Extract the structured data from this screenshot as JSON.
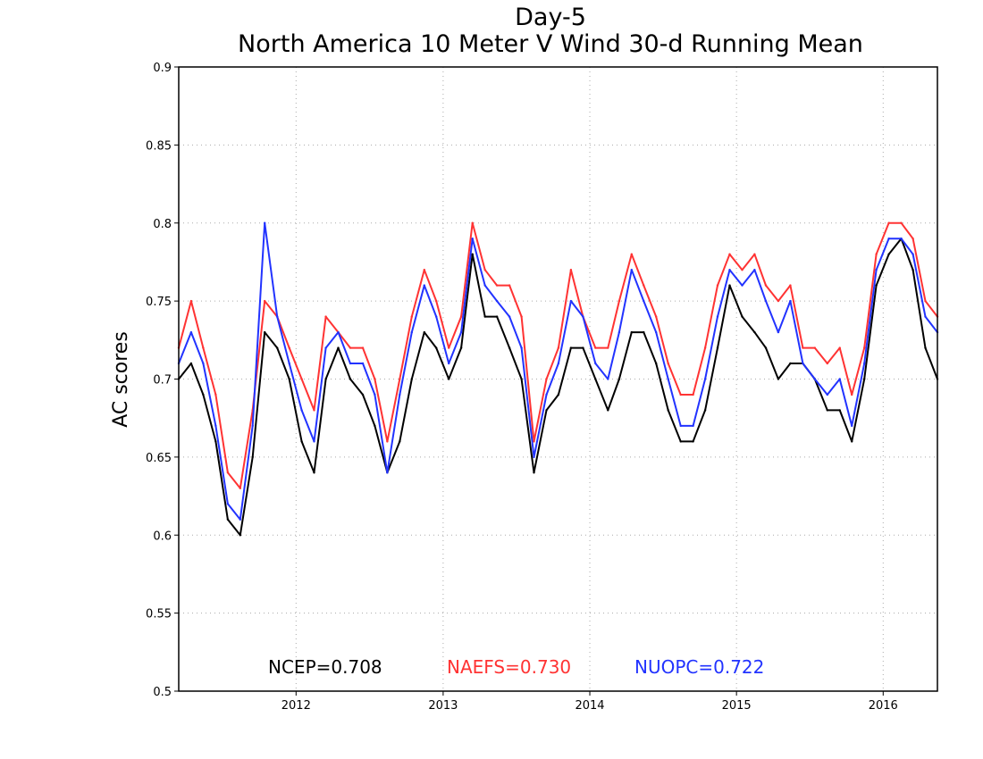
{
  "chart_data": {
    "type": "line",
    "title": "Day-5",
    "subtitle": "North America 10 Meter V Wind 30-d Running Mean",
    "xlabel": "",
    "ylabel": "AC scores",
    "ylim": [
      0.5,
      0.9
    ],
    "xlim": [
      "2011-03-15",
      "2016-05-15"
    ],
    "yticks": [
      "0.5",
      "0.55",
      "0.6",
      "0.65",
      "0.7",
      "0.75",
      "0.8",
      "0.85",
      "0.9"
    ],
    "xticks": [
      {
        "label": "2012",
        "date": "2012-01-01"
      },
      {
        "label": "2013",
        "date": "2013-01-01"
      },
      {
        "label": "2014",
        "date": "2014-01-01"
      },
      {
        "label": "2015",
        "date": "2015-01-01"
      },
      {
        "label": "2016",
        "date": "2016-01-01"
      }
    ],
    "grid": true,
    "legend_position": "bottom",
    "series": [
      {
        "name": "NCEP",
        "label": "NCEP=0.708",
        "color": "#000000",
        "x": [
          "2011-03-15",
          "2011-04-15",
          "2011-05-15",
          "2011-06-15",
          "2011-07-15",
          "2011-08-15",
          "2011-09-15",
          "2011-10-15",
          "2011-11-15",
          "2011-12-15",
          "2012-01-15",
          "2012-02-15",
          "2012-03-15",
          "2012-04-15",
          "2012-05-15",
          "2012-06-15",
          "2012-07-15",
          "2012-08-15",
          "2012-09-15",
          "2012-10-15",
          "2012-11-15",
          "2012-12-15",
          "2013-01-15",
          "2013-02-15",
          "2013-03-15",
          "2013-04-15",
          "2013-05-15",
          "2013-06-15",
          "2013-07-15",
          "2013-08-15",
          "2013-09-15",
          "2013-10-15",
          "2013-11-15",
          "2013-12-15",
          "2014-01-15",
          "2014-02-15",
          "2014-03-15",
          "2014-04-15",
          "2014-05-15",
          "2014-06-15",
          "2014-07-15",
          "2014-08-15",
          "2014-09-15",
          "2014-10-15",
          "2014-11-15",
          "2014-12-15",
          "2015-01-15",
          "2015-02-15",
          "2015-03-15",
          "2015-04-15",
          "2015-05-15",
          "2015-06-15",
          "2015-07-15",
          "2015-08-15",
          "2015-09-15",
          "2015-10-15",
          "2015-11-15",
          "2015-12-15",
          "2016-01-15",
          "2016-02-15",
          "2016-03-15",
          "2016-04-15",
          "2016-05-15"
        ],
        "values": [
          0.7,
          0.71,
          0.69,
          0.66,
          0.61,
          0.6,
          0.65,
          0.73,
          0.72,
          0.7,
          0.66,
          0.64,
          0.7,
          0.72,
          0.7,
          0.69,
          0.67,
          0.64,
          0.66,
          0.7,
          0.73,
          0.72,
          0.7,
          0.72,
          0.78,
          0.74,
          0.74,
          0.72,
          0.7,
          0.64,
          0.68,
          0.69,
          0.72,
          0.72,
          0.7,
          0.68,
          0.7,
          0.73,
          0.73,
          0.71,
          0.68,
          0.66,
          0.66,
          0.68,
          0.72,
          0.76,
          0.74,
          0.73,
          0.72,
          0.7,
          0.71,
          0.71,
          0.7,
          0.68,
          0.68,
          0.66,
          0.7,
          0.76,
          0.78,
          0.79,
          0.77,
          0.72,
          0.7
        ]
      },
      {
        "name": "NAEFS",
        "label": "NAEFS=0.730",
        "color": "#ff3333",
        "x": [
          "2011-03-15",
          "2011-04-15",
          "2011-05-15",
          "2011-06-15",
          "2011-07-15",
          "2011-08-15",
          "2011-09-15",
          "2011-10-15",
          "2011-11-15",
          "2011-12-15",
          "2012-01-15",
          "2012-02-15",
          "2012-03-15",
          "2012-04-15",
          "2012-05-15",
          "2012-06-15",
          "2012-07-15",
          "2012-08-15",
          "2012-09-15",
          "2012-10-15",
          "2012-11-15",
          "2012-12-15",
          "2013-01-15",
          "2013-02-15",
          "2013-03-15",
          "2013-04-15",
          "2013-05-15",
          "2013-06-15",
          "2013-07-15",
          "2013-08-15",
          "2013-09-15",
          "2013-10-15",
          "2013-11-15",
          "2013-12-15",
          "2014-01-15",
          "2014-02-15",
          "2014-03-15",
          "2014-04-15",
          "2014-05-15",
          "2014-06-15",
          "2014-07-15",
          "2014-08-15",
          "2014-09-15",
          "2014-10-15",
          "2014-11-15",
          "2014-12-15",
          "2015-01-15",
          "2015-02-15",
          "2015-03-15",
          "2015-04-15",
          "2015-05-15",
          "2015-06-15",
          "2015-07-15",
          "2015-08-15",
          "2015-09-15",
          "2015-10-15",
          "2015-11-15",
          "2015-12-15",
          "2016-01-15",
          "2016-02-15",
          "2016-03-15",
          "2016-04-15",
          "2016-05-15"
        ],
        "values": [
          0.72,
          0.75,
          0.72,
          0.69,
          0.64,
          0.63,
          0.68,
          0.75,
          0.74,
          0.72,
          0.7,
          0.68,
          0.74,
          0.73,
          0.72,
          0.72,
          0.7,
          0.66,
          0.7,
          0.74,
          0.77,
          0.75,
          0.72,
          0.74,
          0.8,
          0.77,
          0.76,
          0.76,
          0.74,
          0.66,
          0.7,
          0.72,
          0.77,
          0.74,
          0.72,
          0.72,
          0.75,
          0.78,
          0.76,
          0.74,
          0.71,
          0.69,
          0.69,
          0.72,
          0.76,
          0.78,
          0.77,
          0.78,
          0.76,
          0.75,
          0.76,
          0.72,
          0.72,
          0.71,
          0.72,
          0.69,
          0.72,
          0.78,
          0.8,
          0.8,
          0.79,
          0.75,
          0.74
        ]
      },
      {
        "name": "NUOPC",
        "label": "NUOPC=0.722",
        "color": "#2233ff",
        "x": [
          "2011-03-15",
          "2011-04-15",
          "2011-05-15",
          "2011-06-15",
          "2011-07-15",
          "2011-08-15",
          "2011-09-15",
          "2011-10-15",
          "2011-11-15",
          "2011-12-15",
          "2012-01-15",
          "2012-02-15",
          "2012-03-15",
          "2012-04-15",
          "2012-05-15",
          "2012-06-15",
          "2012-07-15",
          "2012-08-15",
          "2012-09-15",
          "2012-10-15",
          "2012-11-15",
          "2012-12-15",
          "2013-01-15",
          "2013-02-15",
          "2013-03-15",
          "2013-04-15",
          "2013-05-15",
          "2013-06-15",
          "2013-07-15",
          "2013-08-15",
          "2013-09-15",
          "2013-10-15",
          "2013-11-15",
          "2013-12-15",
          "2014-01-15",
          "2014-02-15",
          "2014-03-15",
          "2014-04-15",
          "2014-05-15",
          "2014-06-15",
          "2014-07-15",
          "2014-08-15",
          "2014-09-15",
          "2014-10-15",
          "2014-11-15",
          "2014-12-15",
          "2015-01-15",
          "2015-02-15",
          "2015-03-15",
          "2015-04-15",
          "2015-05-15",
          "2015-06-15",
          "2015-07-15",
          "2015-08-15",
          "2015-09-15",
          "2015-10-15",
          "2015-11-15",
          "2015-12-15",
          "2016-01-15",
          "2016-02-15",
          "2016-03-15",
          "2016-04-15",
          "2016-05-15"
        ],
        "values": [
          0.71,
          0.73,
          0.71,
          0.67,
          0.62,
          0.61,
          0.67,
          0.8,
          0.74,
          0.71,
          0.68,
          0.66,
          0.72,
          0.73,
          0.71,
          0.71,
          0.69,
          0.64,
          0.69,
          0.73,
          0.76,
          0.74,
          0.71,
          0.73,
          0.79,
          0.76,
          0.75,
          0.74,
          0.72,
          0.65,
          0.69,
          0.71,
          0.75,
          0.74,
          0.71,
          0.7,
          0.73,
          0.77,
          0.75,
          0.73,
          0.7,
          0.67,
          0.67,
          0.7,
          0.74,
          0.77,
          0.76,
          0.77,
          0.75,
          0.73,
          0.75,
          0.71,
          0.7,
          0.69,
          0.7,
          0.67,
          0.71,
          0.77,
          0.79,
          0.79,
          0.78,
          0.74,
          0.73
        ]
      }
    ]
  }
}
